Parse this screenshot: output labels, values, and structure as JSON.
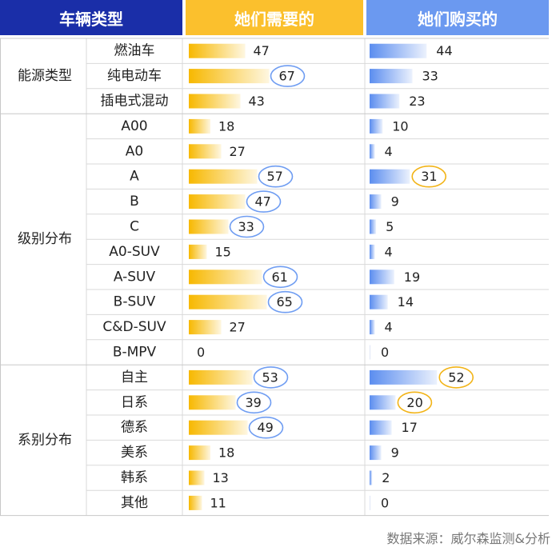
{
  "header": {
    "col1": "车辆类型",
    "col2": "她们需要的",
    "col3": "她们购买的"
  },
  "colors": {
    "header_dark": "#1a2ea8",
    "header_gold": "#fbc02d",
    "header_blue": "#6b99f0",
    "bar_gold": "#f7b800",
    "bar_blue": "#5b8def",
    "circle_blue": "#6f9df2",
    "circle_gold": "#f2b418"
  },
  "source": "数据来源：威尔森监测&分析",
  "chart_data": {
    "type": "bar",
    "groups": [
      {
        "name": "能源类型",
        "categories": [
          "燃油车",
          "纯电动车",
          "插电式混动"
        ]
      },
      {
        "name": "级别分布",
        "categories": [
          "A00",
          "A0",
          "A",
          "B",
          "C",
          "A0-SUV",
          "A-SUV",
          "B-SUV",
          "C&D-SUV",
          "B-MPV"
        ]
      },
      {
        "name": "系别分布",
        "categories": [
          "自主",
          "日系",
          "德系",
          "美系",
          "韩系",
          "其他"
        ]
      }
    ],
    "categories": [
      "燃油车",
      "纯电动车",
      "插电式混动",
      "A00",
      "A0",
      "A",
      "B",
      "C",
      "A0-SUV",
      "A-SUV",
      "B-SUV",
      "C&D-SUV",
      "B-MPV",
      "自主",
      "日系",
      "德系",
      "美系",
      "韩系",
      "其他"
    ],
    "series": [
      {
        "name": "她们需要的",
        "values": [
          47,
          67,
          43,
          18,
          27,
          57,
          47,
          33,
          15,
          61,
          65,
          27,
          0,
          53,
          39,
          49,
          18,
          13,
          11
        ],
        "highlighted": [
          false,
          true,
          false,
          false,
          false,
          true,
          true,
          true,
          false,
          true,
          true,
          false,
          false,
          true,
          true,
          true,
          false,
          false,
          false
        ]
      },
      {
        "name": "她们购买的",
        "values": [
          44,
          33,
          23,
          10,
          4,
          31,
          9,
          5,
          4,
          19,
          14,
          4,
          0,
          52,
          20,
          17,
          9,
          2,
          0
        ],
        "highlighted": [
          false,
          false,
          false,
          false,
          false,
          true,
          false,
          false,
          false,
          false,
          false,
          false,
          false,
          true,
          true,
          false,
          false,
          false,
          false
        ]
      }
    ],
    "xlim": [
      0,
      100
    ]
  }
}
